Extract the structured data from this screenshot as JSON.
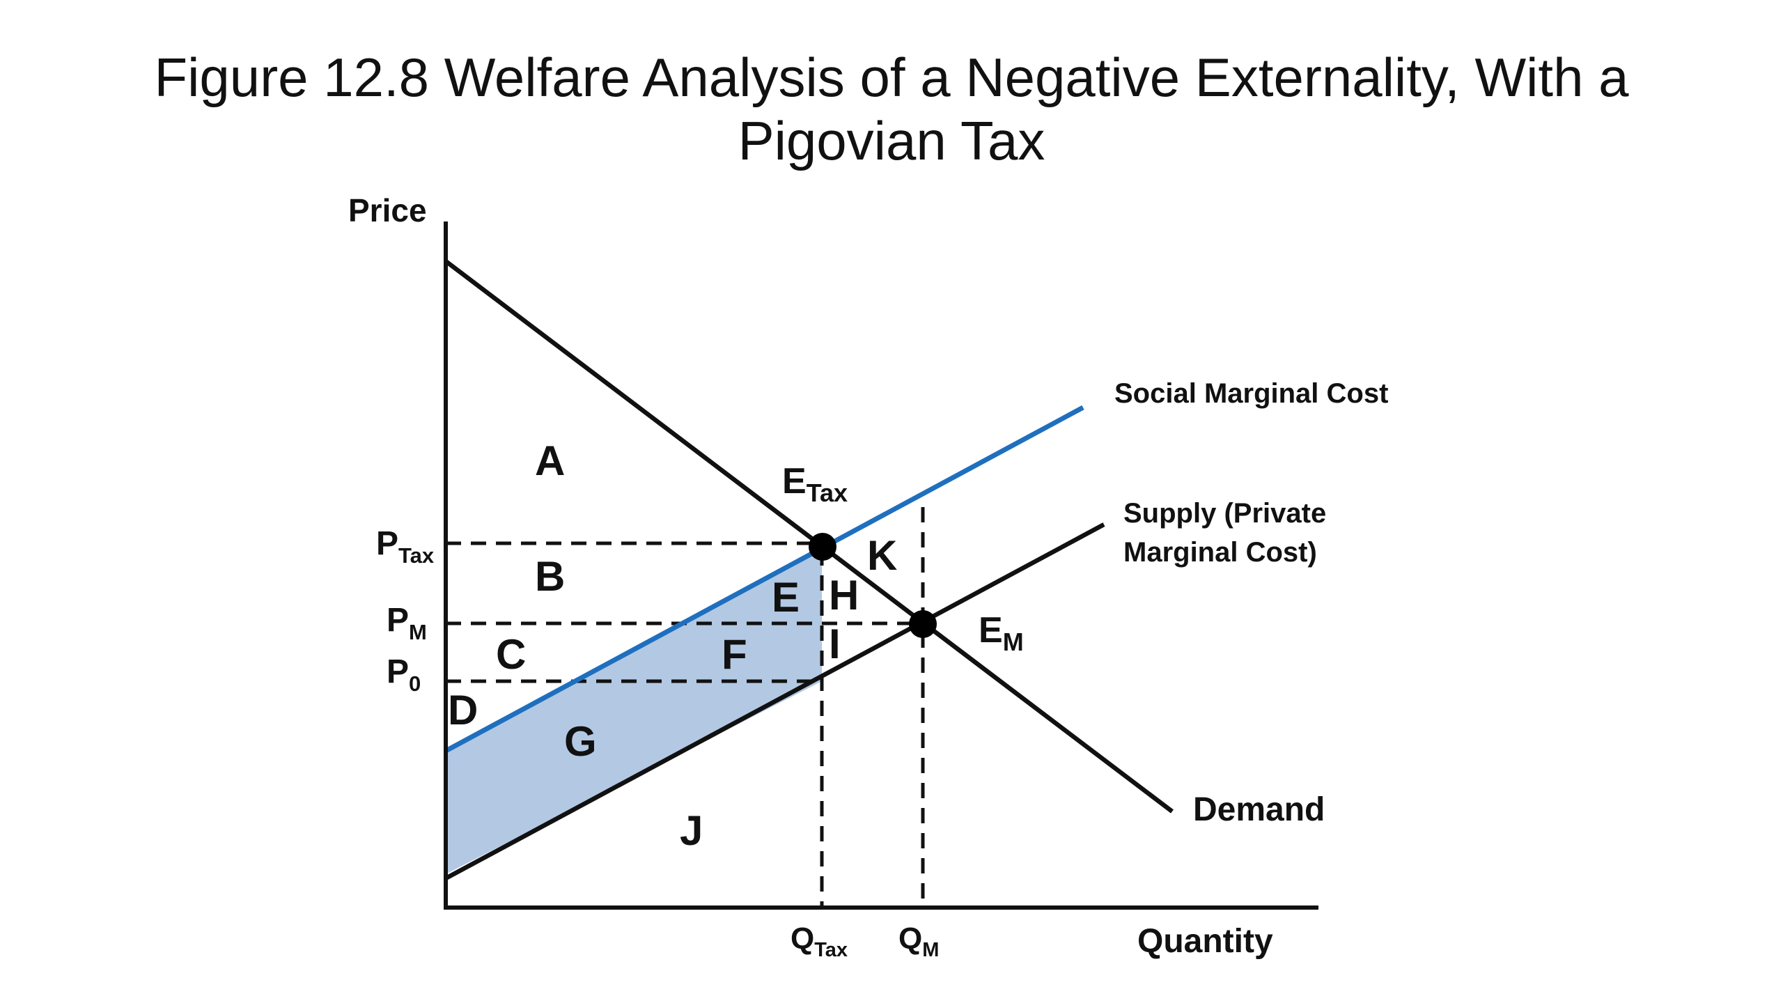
{
  "title": {
    "line1": "Figure 12.8 Welfare Analysis of a Negative Externality, With a",
    "line2": "Pigovian Tax"
  },
  "axes": {
    "y_label": "Price",
    "x_label": "Quantity"
  },
  "curves": {
    "smc": {
      "label": "Social Marginal Cost",
      "color": "#1f6fbf"
    },
    "supply": {
      "label_line1": "Supply (Private",
      "label_line2": "Marginal Cost)",
      "color": "#111111"
    },
    "demand": {
      "label": "Demand",
      "color": "#111111"
    }
  },
  "price_ticks": {
    "p_tax": {
      "main": "P",
      "sub": "Tax"
    },
    "p_m": {
      "main": "P",
      "sub": "M"
    },
    "p_0": {
      "main": "P",
      "sub": "0"
    }
  },
  "quantity_ticks": {
    "q_tax": {
      "main": "Q",
      "sub": "Tax"
    },
    "q_m": {
      "main": "Q",
      "sub": "M"
    }
  },
  "equilibria": {
    "e_tax": {
      "main": "E",
      "sub": "Tax"
    },
    "e_m": {
      "main": "E",
      "sub": "M"
    }
  },
  "regions": {
    "a": "A",
    "b": "B",
    "c": "C",
    "d": "D",
    "e": "E",
    "f": "F",
    "g": "G",
    "h": "H",
    "i": "I",
    "j": "J",
    "k": "K"
  },
  "shaded_region_color": "#b3c8e3"
}
